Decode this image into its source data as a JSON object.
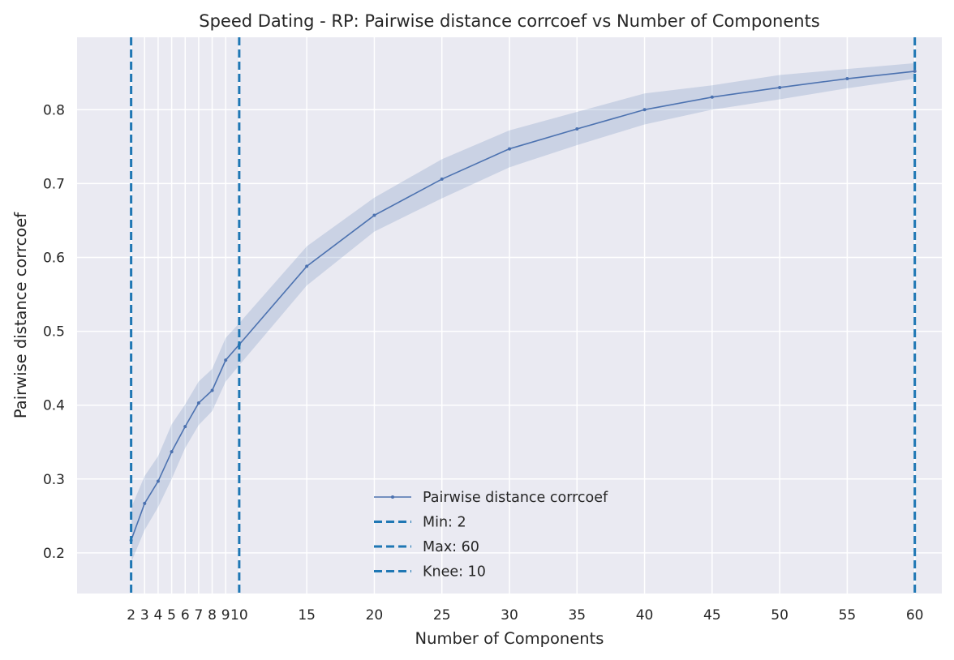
{
  "chart_data": {
    "type": "line",
    "title": "Speed Dating - RP: Pairwise distance corrcoef vs Number of Components",
    "xlabel": "Number of Components",
    "ylabel": "Pairwise distance corrcoef",
    "xlim": [
      -2,
      62
    ],
    "ylim": [
      0.145,
      0.898
    ],
    "grid": true,
    "legend_position": "lower-center",
    "x_ticks": [
      2,
      3,
      4,
      5,
      6,
      7,
      8,
      9,
      10,
      15,
      20,
      25,
      30,
      35,
      40,
      45,
      50,
      55,
      60
    ],
    "y_ticks": [
      0.2,
      0.3,
      0.4,
      0.5,
      0.6,
      0.7,
      0.8
    ],
    "y_tick_labels": [
      "0.2",
      "0.3",
      "0.4",
      "0.5",
      "0.6",
      "0.7",
      "0.8"
    ],
    "series": [
      {
        "name": "Pairwise distance corrcoef",
        "color": "#4c72b0",
        "band_color": "#4c72b0",
        "x": [
          2,
          3,
          4,
          5,
          6,
          7,
          8,
          9,
          10,
          15,
          20,
          25,
          30,
          35,
          40,
          45,
          50,
          55,
          60
        ],
        "y": [
          0.217,
          0.267,
          0.297,
          0.337,
          0.371,
          0.403,
          0.42,
          0.461,
          0.482,
          0.588,
          0.657,
          0.706,
          0.747,
          0.774,
          0.8,
          0.817,
          0.83,
          0.842,
          0.852
        ],
        "lower": [
          0.187,
          0.231,
          0.262,
          0.3,
          0.342,
          0.373,
          0.392,
          0.432,
          0.454,
          0.562,
          0.635,
          0.68,
          0.722,
          0.752,
          0.78,
          0.8,
          0.814,
          0.829,
          0.842
        ],
        "upper": [
          0.261,
          0.304,
          0.331,
          0.374,
          0.401,
          0.432,
          0.449,
          0.491,
          0.511,
          0.615,
          0.681,
          0.733,
          0.772,
          0.797,
          0.822,
          0.833,
          0.847,
          0.855,
          0.863
        ]
      }
    ],
    "vlines": [
      {
        "name": "Min: 2",
        "x": 2,
        "color": "#1f77b4"
      },
      {
        "name": "Max: 60",
        "x": 60,
        "color": "#1f77b4"
      },
      {
        "name": "Knee: 10",
        "x": 10,
        "color": "#1f77b4"
      }
    ],
    "colors": {
      "plot_background": "#eaeaf2",
      "grid": "#ffffff"
    }
  }
}
